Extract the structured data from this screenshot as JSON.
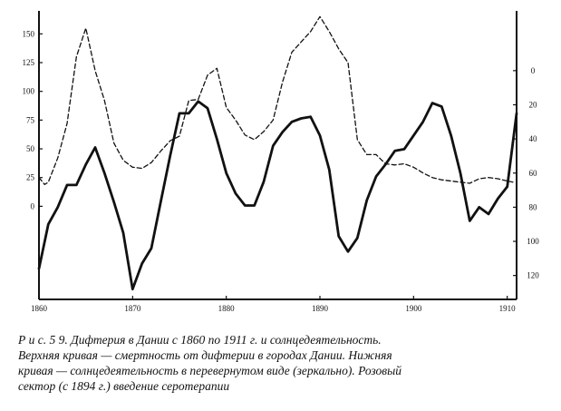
{
  "chart_data": {
    "type": "line",
    "title": "",
    "xlabel": "",
    "ylabel_left": "",
    "ylabel_right": "",
    "x_ticks": [
      1860,
      1870,
      1880,
      1890,
      1900,
      1910
    ],
    "x_tick_labels": [
      "1860",
      "1870",
      "1880",
      "1890",
      "1900",
      "1910"
    ],
    "xlim": [
      1860,
      1911
    ],
    "left_axis": {
      "ticks": [
        0,
        25,
        50,
        75,
        100,
        125,
        150
      ],
      "tick_labels": [
        "0",
        "25",
        "50",
        "75",
        "100",
        "125",
        "150"
      ],
      "ylim": [
        -81,
        170
      ]
    },
    "right_axis": {
      "inverted": true,
      "ticks": [
        0,
        20,
        40,
        60,
        80,
        100,
        120
      ],
      "tick_labels": [
        "0",
        "20",
        "40",
        "60",
        "80",
        "100",
        "120"
      ],
      "ylim": [
        -35,
        134
      ]
    },
    "grid": false,
    "legend": "none",
    "series": [
      {
        "style": "dashed",
        "axis": "left",
        "points": [
          [
            1860,
            25
          ],
          [
            1860.6,
            19
          ],
          [
            1861,
            21
          ],
          [
            1862,
            42
          ],
          [
            1863,
            72
          ],
          [
            1864,
            130
          ],
          [
            1865,
            155
          ],
          [
            1866,
            118
          ],
          [
            1867,
            92
          ],
          [
            1868,
            55
          ],
          [
            1869,
            40
          ],
          [
            1870,
            34
          ],
          [
            1871,
            33
          ],
          [
            1872,
            38
          ],
          [
            1873,
            48
          ],
          [
            1874,
            57
          ],
          [
            1875,
            61
          ],
          [
            1876,
            92
          ],
          [
            1877,
            93
          ],
          [
            1878,
            114
          ],
          [
            1879,
            120
          ],
          [
            1880,
            86
          ],
          [
            1881,
            75
          ],
          [
            1882,
            62
          ],
          [
            1883,
            58
          ],
          [
            1884,
            65
          ],
          [
            1885,
            75
          ],
          [
            1886,
            108
          ],
          [
            1887,
            134
          ],
          [
            1888,
            143
          ],
          [
            1889,
            152
          ],
          [
            1890,
            165
          ],
          [
            1891,
            152
          ],
          [
            1892,
            137
          ],
          [
            1893,
            125
          ],
          [
            1894,
            58
          ],
          [
            1895,
            45
          ],
          [
            1896,
            45
          ],
          [
            1897,
            37
          ],
          [
            1898,
            36
          ],
          [
            1899,
            37
          ],
          [
            1900,
            34
          ],
          [
            1901,
            29
          ],
          [
            1902,
            25
          ],
          [
            1903,
            23
          ],
          [
            1904,
            22
          ],
          [
            1905,
            21
          ],
          [
            1906,
            20
          ],
          [
            1907,
            24
          ],
          [
            1908,
            25
          ],
          [
            1909,
            24
          ],
          [
            1910,
            22
          ],
          [
            1910.6,
            21
          ]
        ]
      },
      {
        "style": "solid",
        "axis": "right",
        "points": [
          [
            1860,
            116
          ],
          [
            1861,
            90
          ],
          [
            1862,
            80
          ],
          [
            1863,
            67
          ],
          [
            1864,
            67
          ],
          [
            1865,
            55
          ],
          [
            1866,
            45
          ],
          [
            1867,
            60
          ],
          [
            1868,
            77
          ],
          [
            1869,
            95
          ],
          [
            1870,
            128
          ],
          [
            1871,
            113
          ],
          [
            1872,
            104
          ],
          [
            1873,
            77
          ],
          [
            1874,
            50
          ],
          [
            1875,
            25
          ],
          [
            1876,
            25
          ],
          [
            1877,
            18
          ],
          [
            1878,
            22
          ],
          [
            1879,
            40
          ],
          [
            1880,
            60
          ],
          [
            1881,
            72
          ],
          [
            1882,
            79
          ],
          [
            1883,
            79
          ],
          [
            1884,
            65
          ],
          [
            1885,
            44
          ],
          [
            1886,
            36
          ],
          [
            1887,
            30
          ],
          [
            1888,
            28
          ],
          [
            1889,
            27
          ],
          [
            1890,
            38
          ],
          [
            1891,
            58
          ],
          [
            1892,
            97
          ],
          [
            1893,
            106
          ],
          [
            1894,
            98
          ],
          [
            1895,
            76
          ],
          [
            1896,
            62
          ],
          [
            1897,
            55
          ],
          [
            1898,
            47
          ],
          [
            1899,
            46
          ],
          [
            1900,
            38
          ],
          [
            1901,
            30
          ],
          [
            1902,
            19
          ],
          [
            1903,
            21
          ],
          [
            1904,
            38
          ],
          [
            1905,
            60
          ],
          [
            1906,
            88
          ],
          [
            1907,
            80
          ],
          [
            1908,
            84
          ],
          [
            1909,
            75
          ],
          [
            1910,
            68
          ],
          [
            1911,
            25
          ]
        ]
      }
    ]
  },
  "caption": {
    "lines": [
      "Р и с.  5 9.  Дифтерия в Дании с 1860 по 1911 г. и солнцедеятельность.",
      "Верхняя кривая — смертность от дифтерии в городах Дании. Нижняя",
      "кривая — солнцедеятельность в перевернутом виде (зеркально). Розовый",
      "сектор  (с  1894  г.)       введение  серотерапии"
    ]
  }
}
